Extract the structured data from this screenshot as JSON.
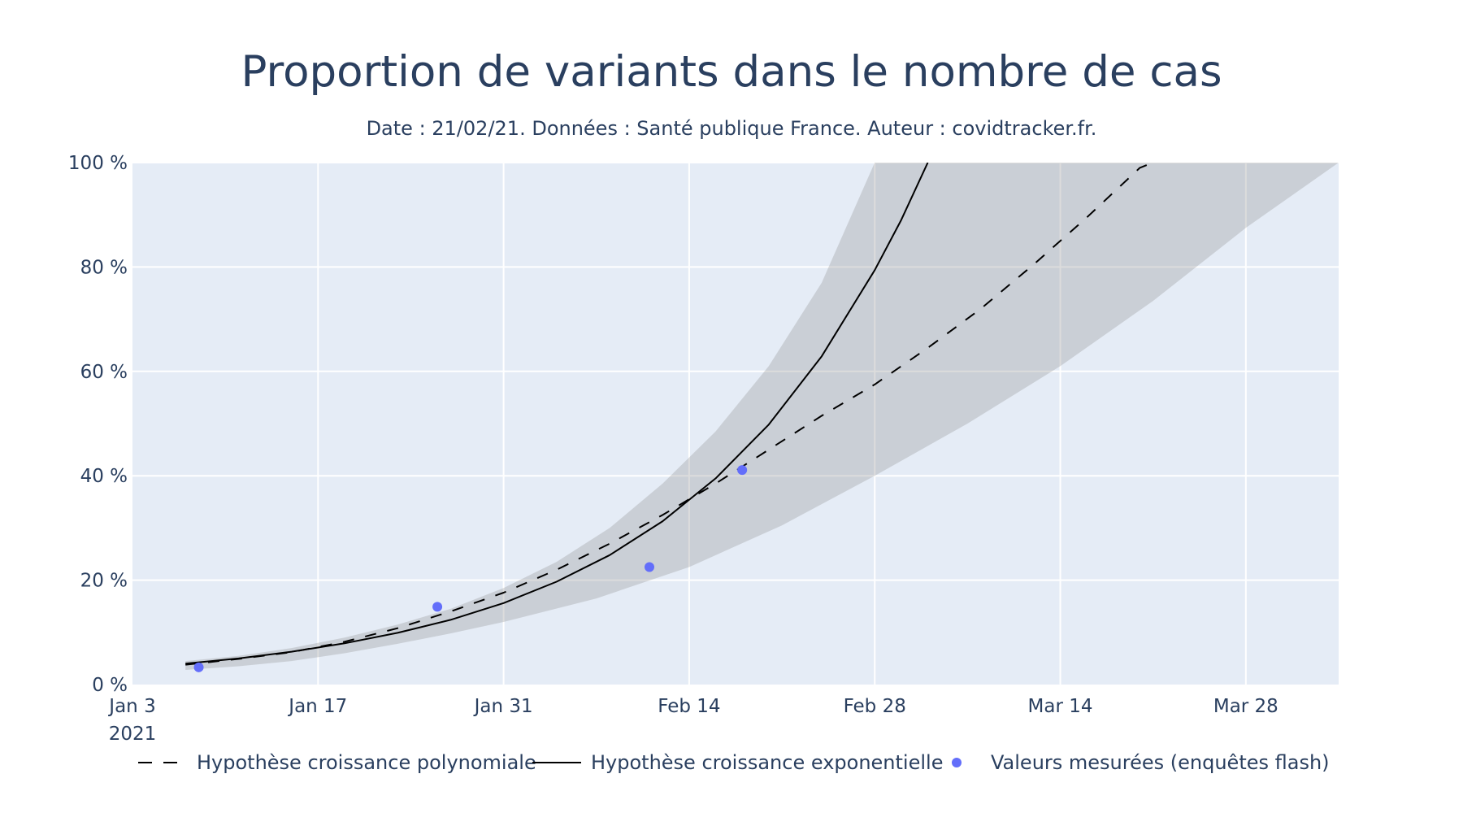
{
  "chart_data": {
    "type": "line",
    "title": "Proportion de variants dans le nombre de cas",
    "subtitle": "Date : 21/02/21. Données : Santé publique France. Auteur : covidtracker.fr.",
    "xlabel": "",
    "ylabel": "",
    "x_axis": {
      "type": "date",
      "range": [
        "2021-01-03",
        "2021-04-04"
      ],
      "tick_dates": [
        "2021-01-03",
        "2021-01-17",
        "2021-01-31",
        "2021-02-14",
        "2021-02-28",
        "2021-03-14",
        "2021-03-28"
      ],
      "tick_labels": [
        "Jan 3",
        "Jan 17",
        "Jan 31",
        "Feb 14",
        "Feb 28",
        "Mar 14",
        "Mar 28"
      ],
      "year_label": "2021"
    },
    "y_axis": {
      "range": [
        0,
        100
      ],
      "tick_values": [
        0,
        20,
        40,
        60,
        80,
        100
      ],
      "tick_labels": [
        "0 %",
        "20 %",
        "40 %",
        "60 %",
        "80 %",
        "100 %"
      ]
    },
    "grid": true,
    "legend_position": "bottom",
    "colors": {
      "plot_background": "#E5ECF6",
      "grid": "#FFFFFF",
      "band": "rgba(150,150,150,0.33)",
      "line": "#000000",
      "marker": "#636EFA",
      "text": "#2A3F5F"
    },
    "band": {
      "upper": [
        {
          "x": "2021-01-07",
          "y": 4.5
        },
        {
          "x": "2021-01-11",
          "y": 5.5
        },
        {
          "x": "2021-01-15",
          "y": 7.0
        },
        {
          "x": "2021-01-19",
          "y": 9.0
        },
        {
          "x": "2021-01-23",
          "y": 11.5
        },
        {
          "x": "2021-01-27",
          "y": 14.5
        },
        {
          "x": "2021-01-31",
          "y": 18.5
        },
        {
          "x": "2021-02-04",
          "y": 23.5
        },
        {
          "x": "2021-02-08",
          "y": 30.0
        },
        {
          "x": "2021-02-12",
          "y": 38.5
        },
        {
          "x": "2021-02-16",
          "y": 48.5
        },
        {
          "x": "2021-02-20",
          "y": 61.0
        },
        {
          "x": "2021-02-24",
          "y": 77.0
        },
        {
          "x": "2021-02-28",
          "y": 100.0
        },
        {
          "x": "2021-04-04",
          "y": 100.0
        }
      ],
      "lower": [
        {
          "x": "2021-01-07",
          "y": 2.8
        },
        {
          "x": "2021-01-11",
          "y": 3.5
        },
        {
          "x": "2021-01-15",
          "y": 4.5
        },
        {
          "x": "2021-01-19",
          "y": 6.0
        },
        {
          "x": "2021-01-23",
          "y": 7.8
        },
        {
          "x": "2021-01-27",
          "y": 9.8
        },
        {
          "x": "2021-01-31",
          "y": 12.0
        },
        {
          "x": "2021-02-07",
          "y": 16.5
        },
        {
          "x": "2021-02-14",
          "y": 22.5
        },
        {
          "x": "2021-02-21",
          "y": 30.5
        },
        {
          "x": "2021-02-28",
          "y": 40.0
        },
        {
          "x": "2021-03-07",
          "y": 50.0
        },
        {
          "x": "2021-03-14",
          "y": 61.0
        },
        {
          "x": "2021-03-21",
          "y": 73.5
        },
        {
          "x": "2021-03-28",
          "y": 87.5
        },
        {
          "x": "2021-04-04",
          "y": 100.0
        }
      ]
    },
    "series": [
      {
        "name": "Hypothèse croissance polynomiale",
        "style": "dashed",
        "points": [
          {
            "x": "2021-01-07",
            "y": 3.8
          },
          {
            "x": "2021-01-11",
            "y": 4.9
          },
          {
            "x": "2021-01-15",
            "y": 6.2
          },
          {
            "x": "2021-01-19",
            "y": 8.2
          },
          {
            "x": "2021-01-23",
            "y": 10.8
          },
          {
            "x": "2021-01-27",
            "y": 14.0
          },
          {
            "x": "2021-01-31",
            "y": 17.6
          },
          {
            "x": "2021-02-04",
            "y": 22.0
          },
          {
            "x": "2021-02-08",
            "y": 27.0
          },
          {
            "x": "2021-02-12",
            "y": 32.5
          },
          {
            "x": "2021-02-16",
            "y": 38.5
          },
          {
            "x": "2021-02-20",
            "y": 45.0
          },
          {
            "x": "2021-02-24",
            "y": 51.5
          },
          {
            "x": "2021-02-28",
            "y": 57.5
          },
          {
            "x": "2021-03-04",
            "y": 64.5
          },
          {
            "x": "2021-03-08",
            "y": 72.0
          },
          {
            "x": "2021-03-12",
            "y": 80.5
          },
          {
            "x": "2021-03-16",
            "y": 89.5
          },
          {
            "x": "2021-03-20",
            "y": 99.0
          },
          {
            "x": "2021-03-21",
            "y": 100.0
          }
        ]
      },
      {
        "name": "Hypothèse croissance exponentielle",
        "style": "solid",
        "points": [
          {
            "x": "2021-01-07",
            "y": 4.0
          },
          {
            "x": "2021-01-11",
            "y": 5.0
          },
          {
            "x": "2021-01-15",
            "y": 6.3
          },
          {
            "x": "2021-01-19",
            "y": 7.9
          },
          {
            "x": "2021-01-23",
            "y": 9.9
          },
          {
            "x": "2021-01-27",
            "y": 12.4
          },
          {
            "x": "2021-01-31",
            "y": 15.6
          },
          {
            "x": "2021-02-04",
            "y": 19.7
          },
          {
            "x": "2021-02-08",
            "y": 24.8
          },
          {
            "x": "2021-02-12",
            "y": 31.3
          },
          {
            "x": "2021-02-16",
            "y": 39.5
          },
          {
            "x": "2021-02-20",
            "y": 49.8
          },
          {
            "x": "2021-02-24",
            "y": 62.9
          },
          {
            "x": "2021-02-28",
            "y": 79.4
          },
          {
            "x": "2021-03-02",
            "y": 89.0
          },
          {
            "x": "2021-03-04",
            "y": 100.0
          }
        ]
      },
      {
        "name": "Valeurs mesurées (enquêtes flash)",
        "style": "markers",
        "points": [
          {
            "x": "2021-01-08",
            "y": 3.3
          },
          {
            "x": "2021-01-26",
            "y": 14.9
          },
          {
            "x": "2021-02-11",
            "y": 22.5
          },
          {
            "x": "2021-02-18",
            "y": 41.1
          }
        ]
      }
    ]
  }
}
